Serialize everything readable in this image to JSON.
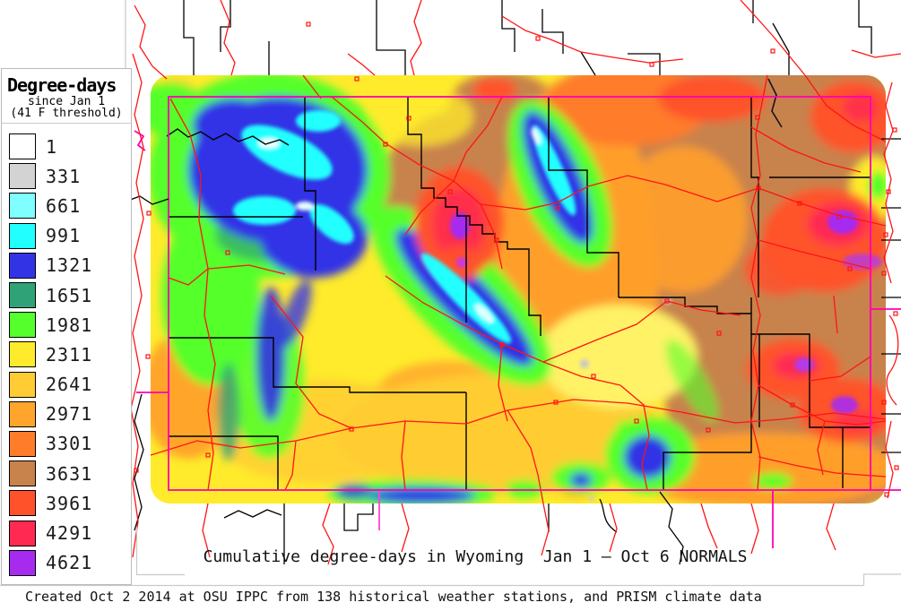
{
  "legend": {
    "title": "Degree-days",
    "subtitle1": "since Jan 1",
    "subtitle2": "(41 F threshold)",
    "entries": [
      {
        "value": "1",
        "color": "#FFFFFF"
      },
      {
        "value": "331",
        "color": "#D3D3D3"
      },
      {
        "value": "661",
        "color": "#7FFFFF"
      },
      {
        "value": "991",
        "color": "#22FFFF"
      },
      {
        "value": "1321",
        "color": "#3333E6"
      },
      {
        "value": "1651",
        "color": "#2FA377"
      },
      {
        "value": "1981",
        "color": "#55FF2B"
      },
      {
        "value": "2311",
        "color": "#FFEB2B"
      },
      {
        "value": "2641",
        "color": "#FFCC33"
      },
      {
        "value": "2971",
        "color": "#FFA52B"
      },
      {
        "value": "3301",
        "color": "#FF7C2B"
      },
      {
        "value": "3631",
        "color": "#C8824B"
      },
      {
        "value": "3961",
        "color": "#FF522B"
      },
      {
        "value": "4291",
        "color": "#FF2952"
      },
      {
        "value": "4621",
        "color": "#A62BEF"
      }
    ]
  },
  "caption": "Cumulative degree-days in Wyoming  Jan 1 — Oct 6 NORMALS",
  "footer": "Created Oct 2 2014 at OSU IPPC from 138 historical weather stations, and PRISM climate data",
  "map": {
    "region": "Wyoming",
    "line_colors": {
      "state_border": "#FF00B4",
      "roads": "#FF1414",
      "county_lines": "#000000",
      "frame_lines": "#C9C9C9"
    }
  },
  "chart_data": {
    "type": "heatmap",
    "title": "Cumulative degree-days in Wyoming  Jan 1 — Oct 6 NORMALS",
    "unit": "degree-days (41 F threshold, since Jan 1)",
    "legend_bins": [
      1,
      331,
      661,
      991,
      1321,
      1651,
      1981,
      2311,
      2641,
      2971,
      3301,
      3631,
      3961,
      4291,
      4621
    ]
  }
}
